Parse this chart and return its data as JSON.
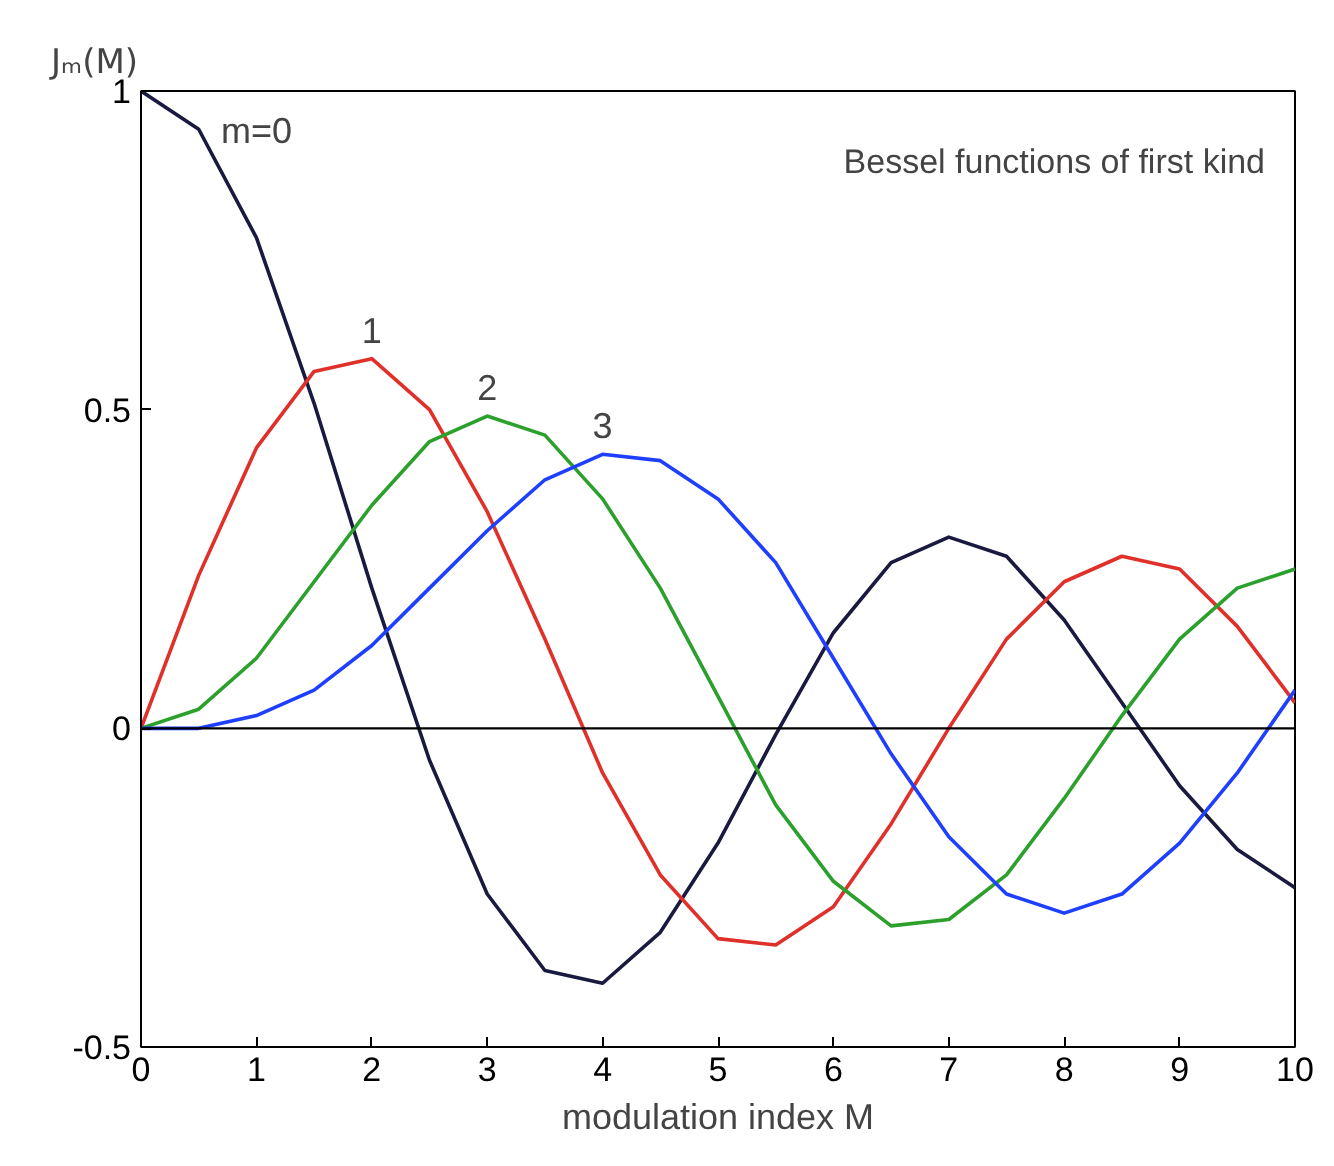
{
  "chart_data": {
    "type": "line",
    "title": "Bessel functions of first kind",
    "xlabel": "modulation index M",
    "ylabel": "Jₘ(M)",
    "x": [
      0,
      0.5,
      1,
      1.5,
      2,
      2.5,
      3,
      3.5,
      4,
      4.5,
      5,
      5.5,
      6,
      6.5,
      7,
      7.5,
      8,
      8.5,
      9,
      9.5,
      10
    ],
    "series": [
      {
        "name": "m=0",
        "color": "#1a1a40",
        "values": [
          1,
          0.94,
          0.77,
          0.51,
          0.22,
          -0.05,
          -0.26,
          -0.38,
          -0.4,
          -0.32,
          -0.18,
          -0.01,
          0.15,
          0.26,
          0.3,
          0.27,
          0.17,
          0.04,
          -0.09,
          -0.19,
          -0.25
        ]
      },
      {
        "name": "1",
        "color": "#e0302a",
        "values": [
          0,
          0.24,
          0.44,
          0.56,
          0.58,
          0.5,
          0.34,
          0.14,
          -0.07,
          -0.23,
          -0.33,
          -0.34,
          -0.28,
          -0.15,
          0,
          0.14,
          0.23,
          0.27,
          0.25,
          0.16,
          0.04
        ]
      },
      {
        "name": "2",
        "color": "#2ca02c",
        "values": [
          0,
          0.03,
          0.11,
          0.23,
          0.35,
          0.45,
          0.49,
          0.46,
          0.36,
          0.22,
          0.05,
          -0.12,
          -0.24,
          -0.31,
          -0.3,
          -0.23,
          -0.11,
          0.02,
          0.14,
          0.22,
          0.25
        ]
      },
      {
        "name": "3",
        "color": "#1f3fff",
        "values": [
          0,
          0,
          0.02,
          0.06,
          0.13,
          0.22,
          0.31,
          0.39,
          0.43,
          0.42,
          0.36,
          0.26,
          0.11,
          -0.04,
          -0.17,
          -0.26,
          -0.29,
          -0.26,
          -0.18,
          -0.07,
          0.06
        ]
      }
    ],
    "xlim": [
      0,
      10
    ],
    "ylim": [
      -0.5,
      1
    ],
    "xticks": [
      0,
      1,
      2,
      3,
      4,
      5,
      6,
      7,
      8,
      9,
      10
    ],
    "yticks": [
      -0.5,
      0,
      0.5,
      1
    ],
    "ref_lines": [
      {
        "axis": "y",
        "value": 0,
        "color": "#000000"
      }
    ],
    "grid": false,
    "marker": "none",
    "line_style": "solid"
  }
}
